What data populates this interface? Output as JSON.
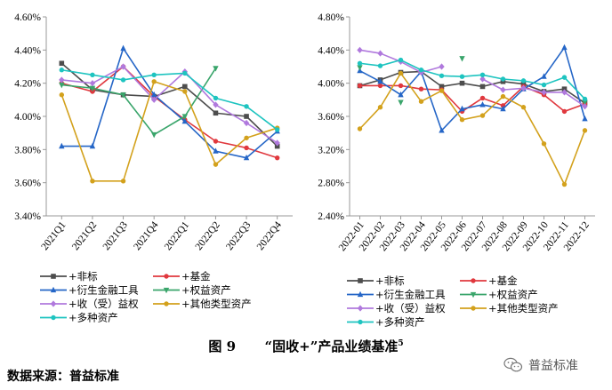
{
  "colors": {
    "feibiao": "#4d4d4d",
    "jijin": "#e0383e",
    "yansheng": "#2566c7",
    "quanyi": "#3aa56b",
    "shouyi": "#b079dd",
    "qita": "#d3a11c",
    "duozhong": "#1ec4c0"
  },
  "legend_labels": [
    "+非标",
    "+基金",
    "+衍生金融工具",
    "+权益资产",
    "+收（受）益权",
    "+其他类型资产",
    "+多种资产"
  ],
  "caption": {
    "label": "图 9",
    "title": "“固收+”产品业绩基准",
    "note": "5"
  },
  "source": "数据来源：普益标准",
  "watermark": "普益标准",
  "chart_data": [
    {
      "type": "line",
      "title": "",
      "xlabel": "",
      "ylabel": "",
      "ylim": [
        3.4,
        4.6
      ],
      "yticks": [
        "3.40%",
        "3.60%",
        "3.80%",
        "4.00%",
        "4.20%",
        "4.40%",
        "4.60%"
      ],
      "categories": [
        "2021Q1",
        "2021Q2",
        "2021Q3",
        "2021Q4",
        "2022Q1",
        "2022Q2",
        "2022Q3",
        "2022Q4"
      ],
      "series": [
        {
          "name": "+非标",
          "key": "feibiao",
          "marker": "square",
          "values": [
            4.32,
            4.16,
            4.13,
            4.12,
            4.18,
            4.02,
            4.0,
            3.82
          ]
        },
        {
          "name": "+基金",
          "key": "jijin",
          "marker": "circle",
          "values": [
            4.2,
            4.15,
            4.3,
            4.12,
            3.98,
            3.85,
            3.81,
            3.75
          ]
        },
        {
          "name": "+衍生金融工具",
          "key": "yansheng",
          "marker": "triangle",
          "values": [
            3.82,
            3.82,
            4.41,
            4.13,
            3.97,
            3.79,
            3.75,
            3.91
          ]
        },
        {
          "name": "+权益资产",
          "key": "quanyi",
          "marker": "triangle-down",
          "values": [
            4.19,
            4.17,
            4.13,
            3.89,
            4.0,
            4.29,
            null,
            null
          ]
        },
        {
          "name": "+收（受）益权",
          "key": "shouyi",
          "marker": "diamond",
          "values": [
            4.22,
            4.2,
            4.3,
            4.1,
            4.27,
            4.07,
            3.96,
            3.84
          ]
        },
        {
          "name": "+其他类型资产",
          "key": "qita",
          "marker": "circle",
          "values": [
            4.13,
            3.61,
            3.61,
            4.21,
            4.15,
            3.71,
            3.87,
            3.93
          ]
        },
        {
          "name": "+多种资产",
          "key": "duozhong",
          "marker": "circle",
          "values": [
            4.28,
            4.25,
            4.22,
            4.25,
            4.26,
            4.11,
            4.06,
            3.92
          ]
        }
      ]
    },
    {
      "type": "line",
      "title": "",
      "xlabel": "",
      "ylabel": "",
      "ylim": [
        2.4,
        4.8
      ],
      "yticks": [
        "2.40%",
        "2.80%",
        "3.20%",
        "3.60%",
        "4.00%",
        "4.40%",
        "4.80%"
      ],
      "categories": [
        "2022-01",
        "2022-02",
        "2022-03",
        "2022-04",
        "2022-05",
        "2022-06",
        "2022-07",
        "2022-08",
        "2022-09",
        "2022-10",
        "2022-11",
        "2022-12"
      ],
      "series": [
        {
          "name": "+非标",
          "key": "feibiao",
          "marker": "square",
          "values": [
            3.97,
            4.04,
            4.13,
            4.14,
            3.96,
            4.0,
            3.96,
            4.02,
            3.99,
            3.9,
            3.93,
            3.76
          ]
        },
        {
          "name": "+基金",
          "key": "jijin",
          "marker": "circle",
          "values": [
            3.97,
            3.97,
            3.97,
            3.93,
            3.92,
            3.66,
            3.82,
            3.73,
            3.96,
            3.86,
            3.66,
            3.75
          ]
        },
        {
          "name": "+衍生金融工具",
          "key": "yansheng",
          "marker": "triangle",
          "values": [
            4.15,
            4.02,
            3.86,
            4.14,
            3.43,
            3.69,
            3.74,
            3.69,
            3.93,
            4.08,
            4.43,
            3.57
          ]
        },
        {
          "name": "+权益资产",
          "key": "quanyi",
          "marker": "triangle-down",
          "values": [
            4.19,
            null,
            3.77,
            null,
            null,
            4.3,
            null,
            null,
            null,
            null,
            null,
            3.77
          ]
        },
        {
          "name": "+收（受）益权",
          "key": "shouyi",
          "marker": "diamond",
          "values": [
            4.4,
            4.36,
            4.26,
            4.13,
            4.2,
            null,
            4.05,
            3.92,
            3.94,
            3.89,
            3.89,
            3.72
          ]
        },
        {
          "name": "+其他类型资产",
          "key": "qita",
          "marker": "circle",
          "values": [
            3.45,
            3.71,
            4.12,
            3.78,
            3.91,
            3.56,
            3.61,
            3.84,
            3.71,
            3.27,
            2.78,
            3.43
          ]
        },
        {
          "name": "+多种资产",
          "key": "duozhong",
          "marker": "circle",
          "values": [
            4.24,
            4.21,
            4.28,
            4.16,
            4.09,
            4.08,
            4.1,
            4.05,
            4.03,
            3.98,
            4.07,
            3.81
          ]
        }
      ]
    }
  ]
}
